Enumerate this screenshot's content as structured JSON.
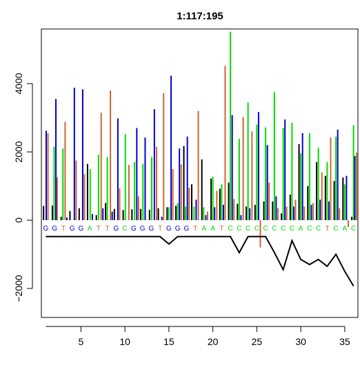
{
  "colors": {
    "A": "#00dd00",
    "C": "#0000cc",
    "G": "#000000",
    "T": "#cc6633",
    "label_A": "#00dd00",
    "label_C": "#00dd00",
    "label_G": "#0000cc",
    "label_T": "#cc6633",
    "line": "#000000"
  },
  "chart_data": {
    "type": "line",
    "title": "1:117:195",
    "xlabel": "",
    "ylabel": "",
    "xlim": [
      0.5,
      36.5
    ],
    "ylim": [
      -2850,
      5600
    ],
    "x_ticks": [
      0,
      5,
      10,
      15,
      20,
      25,
      30,
      35
    ],
    "y_ticks": [
      -2000,
      0,
      2000,
      4000
    ],
    "y_tick_labels": [
      "−2000",
      "0",
      "2000",
      "4000"
    ],
    "grid": false,
    "base_calls": [
      "G",
      "G",
      "T",
      "G",
      "G",
      "A",
      "T",
      "T",
      "G",
      "C",
      "G",
      "G",
      "G",
      "T",
      "G",
      "G",
      "G",
      "T",
      "A",
      "A",
      "T",
      "C",
      "C",
      "C",
      "C",
      "C",
      "C",
      "C",
      "C",
      "A",
      "C",
      "C",
      "T",
      "C",
      "A",
      "C"
    ],
    "base_label_y": -300,
    "bars": [
      {
        "x": 0.75,
        "h": 420,
        "c": "G"
      },
      {
        "x": 1.05,
        "h": 2620,
        "c": "C"
      },
      {
        "x": 1.25,
        "h": 2550,
        "c": "T"
      },
      {
        "x": 1.75,
        "h": 430,
        "c": "G"
      },
      {
        "x": 1.95,
        "h": 2150,
        "c": "A"
      },
      {
        "x": 2.15,
        "h": 3550,
        "c": "C"
      },
      {
        "x": 2.3,
        "h": 1250,
        "c": "T"
      },
      {
        "x": 2.75,
        "h": 100,
        "c": "G"
      },
      {
        "x": 2.95,
        "h": 2100,
        "c": "A"
      },
      {
        "x": 3.2,
        "h": 2880,
        "c": "T"
      },
      {
        "x": 3.4,
        "h": 80,
        "c": "C"
      },
      {
        "x": 3.75,
        "h": 270,
        "c": "G"
      },
      {
        "x": 4.25,
        "h": 3880,
        "c": "C"
      },
      {
        "x": 4.45,
        "h": 1750,
        "c": "T"
      },
      {
        "x": 4.8,
        "h": 350,
        "c": "G"
      },
      {
        "x": 5.2,
        "h": 3830,
        "c": "C"
      },
      {
        "x": 5.4,
        "h": 1350,
        "c": "T"
      },
      {
        "x": 5.75,
        "h": 1650,
        "c": "G"
      },
      {
        "x": 6.05,
        "h": 1500,
        "c": "A"
      },
      {
        "x": 6.3,
        "h": 180,
        "c": "C"
      },
      {
        "x": 6.75,
        "h": 150,
        "c": "G"
      },
      {
        "x": 7.0,
        "h": 1920,
        "c": "A"
      },
      {
        "x": 7.3,
        "h": 3150,
        "c": "T"
      },
      {
        "x": 7.5,
        "h": 350,
        "c": "C"
      },
      {
        "x": 7.8,
        "h": 500,
        "c": "G"
      },
      {
        "x": 8.0,
        "h": 1850,
        "c": "A"
      },
      {
        "x": 8.35,
        "h": 3800,
        "c": "T"
      },
      {
        "x": 8.55,
        "h": 250,
        "c": "C"
      },
      {
        "x": 8.8,
        "h": 330,
        "c": "G"
      },
      {
        "x": 9.2,
        "h": 2980,
        "c": "C"
      },
      {
        "x": 9.4,
        "h": 930,
        "c": "T"
      },
      {
        "x": 9.8,
        "h": 300,
        "c": "G"
      },
      {
        "x": 10.05,
        "h": 2520,
        "c": "A"
      },
      {
        "x": 10.45,
        "h": 1620,
        "c": "T"
      },
      {
        "x": 10.8,
        "h": 320,
        "c": "G"
      },
      {
        "x": 11.1,
        "h": 1700,
        "c": "A"
      },
      {
        "x": 11.35,
        "h": 2700,
        "c": "C"
      },
      {
        "x": 11.55,
        "h": 700,
        "c": "T"
      },
      {
        "x": 11.8,
        "h": 330,
        "c": "G"
      },
      {
        "x": 12.05,
        "h": 1650,
        "c": "A"
      },
      {
        "x": 12.3,
        "h": 2420,
        "c": "C"
      },
      {
        "x": 12.5,
        "h": 10,
        "c": "T"
      },
      {
        "x": 12.8,
        "h": 300,
        "c": "G"
      },
      {
        "x": 13.05,
        "h": 1850,
        "c": "A"
      },
      {
        "x": 13.35,
        "h": 3250,
        "c": "C"
      },
      {
        "x": 13.6,
        "h": 2150,
        "c": "T"
      },
      {
        "x": 13.8,
        "h": 350,
        "c": "G"
      },
      {
        "x": 14.2,
        "h": 100,
        "c": "C"
      },
      {
        "x": 14.4,
        "h": 3720,
        "c": "T"
      },
      {
        "x": 14.8,
        "h": 380,
        "c": "G"
      },
      {
        "x": 15.0,
        "h": 380,
        "c": "A"
      },
      {
        "x": 15.25,
        "h": 4230,
        "c": "C"
      },
      {
        "x": 15.45,
        "h": 1500,
        "c": "T"
      },
      {
        "x": 15.8,
        "h": 420,
        "c": "G"
      },
      {
        "x": 16.0,
        "h": 500,
        "c": "A"
      },
      {
        "x": 16.2,
        "h": 2100,
        "c": "C"
      },
      {
        "x": 16.4,
        "h": 1630,
        "c": "T"
      },
      {
        "x": 16.7,
        "h": 2170,
        "c": "G"
      },
      {
        "x": 16.9,
        "h": 400,
        "c": "A"
      },
      {
        "x": 17.1,
        "h": 2450,
        "c": "C"
      },
      {
        "x": 17.3,
        "h": 950,
        "c": "T"
      },
      {
        "x": 17.6,
        "h": 1050,
        "c": "G"
      },
      {
        "x": 17.85,
        "h": 400,
        "c": "A"
      },
      {
        "x": 18.1,
        "h": 600,
        "c": "C"
      },
      {
        "x": 18.35,
        "h": 3200,
        "c": "T"
      },
      {
        "x": 18.75,
        "h": 1780,
        "c": "G"
      },
      {
        "x": 18.95,
        "h": 380,
        "c": "A"
      },
      {
        "x": 19.2,
        "h": 150,
        "c": "C"
      },
      {
        "x": 19.4,
        "h": 250,
        "c": "T"
      },
      {
        "x": 19.8,
        "h": 1220,
        "c": "G"
      },
      {
        "x": 20.0,
        "h": 1270,
        "c": "A"
      },
      {
        "x": 20.2,
        "h": 380,
        "c": "C"
      },
      {
        "x": 20.45,
        "h": 860,
        "c": "T"
      },
      {
        "x": 20.8,
        "h": 920,
        "c": "G"
      },
      {
        "x": 21.0,
        "h": 1050,
        "c": "A"
      },
      {
        "x": 21.2,
        "h": 450,
        "c": "C"
      },
      {
        "x": 21.4,
        "h": 4520,
        "c": "T"
      },
      {
        "x": 21.8,
        "h": 1100,
        "c": "G"
      },
      {
        "x": 22.0,
        "h": 5520,
        "c": "A"
      },
      {
        "x": 22.2,
        "h": 3080,
        "c": "C"
      },
      {
        "x": 22.4,
        "h": 620,
        "c": "T"
      },
      {
        "x": 22.8,
        "h": 480,
        "c": "G"
      },
      {
        "x": 23.0,
        "h": 2380,
        "c": "A"
      },
      {
        "x": 23.2,
        "h": 150,
        "c": "C"
      },
      {
        "x": 23.45,
        "h": 3020,
        "c": "T"
      },
      {
        "x": 23.8,
        "h": 400,
        "c": "G"
      },
      {
        "x": 24.0,
        "h": 3450,
        "c": "A"
      },
      {
        "x": 24.2,
        "h": 350,
        "c": "C"
      },
      {
        "x": 24.45,
        "h": 2600,
        "c": "T"
      },
      {
        "x": 24.8,
        "h": 450,
        "c": "G"
      },
      {
        "x": 25.0,
        "h": 2800,
        "c": "A"
      },
      {
        "x": 25.2,
        "h": 3170,
        "c": "C"
      },
      {
        "x": 25.4,
        "h": -800,
        "c": "T"
      },
      {
        "x": 25.8,
        "h": 550,
        "c": "G"
      },
      {
        "x": 26.0,
        "h": 2720,
        "c": "A"
      },
      {
        "x": 26.2,
        "h": 2200,
        "c": "C"
      },
      {
        "x": 26.4,
        "h": 1100,
        "c": "T"
      },
      {
        "x": 26.8,
        "h": 550,
        "c": "G"
      },
      {
        "x": 27.0,
        "h": 3750,
        "c": "A"
      },
      {
        "x": 27.2,
        "h": 700,
        "c": "C"
      },
      {
        "x": 27.4,
        "h": 350,
        "c": "T"
      },
      {
        "x": 27.8,
        "h": 200,
        "c": "G"
      },
      {
        "x": 28.0,
        "h": 2700,
        "c": "A"
      },
      {
        "x": 28.2,
        "h": 2950,
        "c": "C"
      },
      {
        "x": 28.4,
        "h": 400,
        "c": "T"
      },
      {
        "x": 28.8,
        "h": 750,
        "c": "G"
      },
      {
        "x": 29.0,
        "h": 2850,
        "c": "A"
      },
      {
        "x": 29.2,
        "h": 400,
        "c": "C"
      },
      {
        "x": 29.4,
        "h": 600,
        "c": "T"
      },
      {
        "x": 29.8,
        "h": 2230,
        "c": "G"
      },
      {
        "x": 30.0,
        "h": 1950,
        "c": "A"
      },
      {
        "x": 30.2,
        "h": 2550,
        "c": "C"
      },
      {
        "x": 30.4,
        "h": 400,
        "c": "T"
      },
      {
        "x": 30.8,
        "h": 1000,
        "c": "G"
      },
      {
        "x": 31.0,
        "h": 2550,
        "c": "A"
      },
      {
        "x": 31.2,
        "h": 450,
        "c": "C"
      },
      {
        "x": 31.4,
        "h": 500,
        "c": "T"
      },
      {
        "x": 31.8,
        "h": 1700,
        "c": "G"
      },
      {
        "x": 32.0,
        "h": 2120,
        "c": "A"
      },
      {
        "x": 32.2,
        "h": 600,
        "c": "C"
      },
      {
        "x": 32.4,
        "h": 1400,
        "c": "T"
      },
      {
        "x": 32.8,
        "h": 1300,
        "c": "G"
      },
      {
        "x": 33.0,
        "h": 1700,
        "c": "A"
      },
      {
        "x": 33.2,
        "h": 550,
        "c": "C"
      },
      {
        "x": 33.4,
        "h": 2420,
        "c": "T"
      },
      {
        "x": 33.8,
        "h": 1150,
        "c": "G"
      },
      {
        "x": 34.0,
        "h": 2450,
        "c": "A"
      },
      {
        "x": 34.2,
        "h": 2650,
        "c": "C"
      },
      {
        "x": 34.4,
        "h": 350,
        "c": "T"
      },
      {
        "x": 34.8,
        "h": 1250,
        "c": "G"
      },
      {
        "x": 35.0,
        "h": 1050,
        "c": "A"
      },
      {
        "x": 35.2,
        "h": 1300,
        "c": "C"
      },
      {
        "x": 35.4,
        "h": -200,
        "c": "T"
      },
      {
        "x": 35.8,
        "h": 100,
        "c": "G"
      },
      {
        "x": 36.0,
        "h": 2780,
        "c": "A"
      },
      {
        "x": 36.15,
        "h": 1880,
        "c": "C"
      },
      {
        "x": 36.35,
        "h": 1980,
        "c": "T"
      }
    ],
    "line": [
      {
        "x": 1,
        "y": -480
      },
      {
        "x": 2,
        "y": -480
      },
      {
        "x": 3,
        "y": -480
      },
      {
        "x": 4,
        "y": -480
      },
      {
        "x": 5,
        "y": -480
      },
      {
        "x": 6,
        "y": -480
      },
      {
        "x": 7,
        "y": -480
      },
      {
        "x": 8,
        "y": -480
      },
      {
        "x": 9,
        "y": -480
      },
      {
        "x": 10,
        "y": -480
      },
      {
        "x": 11,
        "y": -480
      },
      {
        "x": 12,
        "y": -480
      },
      {
        "x": 13,
        "y": -480
      },
      {
        "x": 14,
        "y": -480
      },
      {
        "x": 15,
        "y": -700
      },
      {
        "x": 16,
        "y": -480
      },
      {
        "x": 17,
        "y": -480
      },
      {
        "x": 18,
        "y": -480
      },
      {
        "x": 19,
        "y": -480
      },
      {
        "x": 20,
        "y": -480
      },
      {
        "x": 21,
        "y": -480
      },
      {
        "x": 22,
        "y": -480
      },
      {
        "x": 23,
        "y": -950
      },
      {
        "x": 24,
        "y": -480
      },
      {
        "x": 25,
        "y": -480
      },
      {
        "x": 26,
        "y": -480
      },
      {
        "x": 27,
        "y": -950
      },
      {
        "x": 28,
        "y": -1450
      },
      {
        "x": 29,
        "y": -600
      },
      {
        "x": 30,
        "y": -1150
      },
      {
        "x": 31,
        "y": -1300
      },
      {
        "x": 32,
        "y": -1150
      },
      {
        "x": 33,
        "y": -1350
      },
      {
        "x": 34,
        "y": -1000
      },
      {
        "x": 35,
        "y": -1500
      },
      {
        "x": 36,
        "y": -1930
      }
    ]
  }
}
